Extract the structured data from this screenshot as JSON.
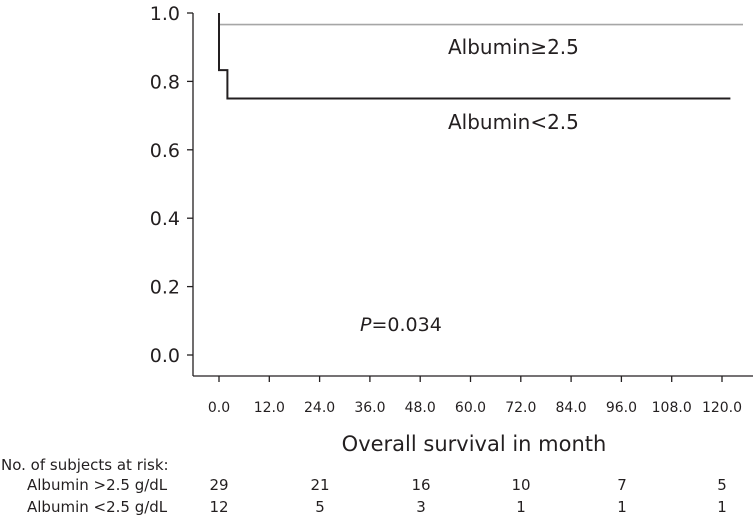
{
  "chart_data": {
    "type": "line",
    "xlabel": "Overall survival in month",
    "ylabel": "",
    "xlim": [
      -3,
      125
    ],
    "ylim": [
      0,
      1.0
    ],
    "x_ticks": [
      "0.0",
      "12.0",
      "24.0",
      "36.0",
      "48.0",
      "60.0",
      "72.0",
      "84.0",
      "96.0",
      "108.0",
      "120.0"
    ],
    "y_ticks": [
      "0.0",
      "0.2",
      "0.4",
      "0.6",
      "0.8",
      "1.0"
    ],
    "series": [
      {
        "name": "Albumin≥2.5",
        "color": "#a6a6a6",
        "points": [
          [
            0,
            1.0
          ],
          [
            0,
            0.966
          ],
          [
            125,
            0.966
          ]
        ]
      },
      {
        "name": "Albumin<2.5",
        "color": "#231f20",
        "points": [
          [
            0,
            1.0
          ],
          [
            0,
            0.833
          ],
          [
            2,
            0.833
          ],
          [
            2,
            0.75
          ],
          [
            122,
            0.75
          ]
        ]
      }
    ],
    "annotation": {
      "prefix": "P",
      "value": "=0.034"
    }
  },
  "risk_table": {
    "title": "No. of subjects at risk:",
    "rows": [
      {
        "label": "Albumin >2.5 g/dL",
        "values": [
          "29",
          "21",
          "16",
          "10",
          "7",
          "5"
        ]
      },
      {
        "label": "Albumin <2.5 g/dL",
        "values": [
          "12",
          "5",
          "3",
          "1",
          "1",
          "1"
        ]
      }
    ]
  }
}
